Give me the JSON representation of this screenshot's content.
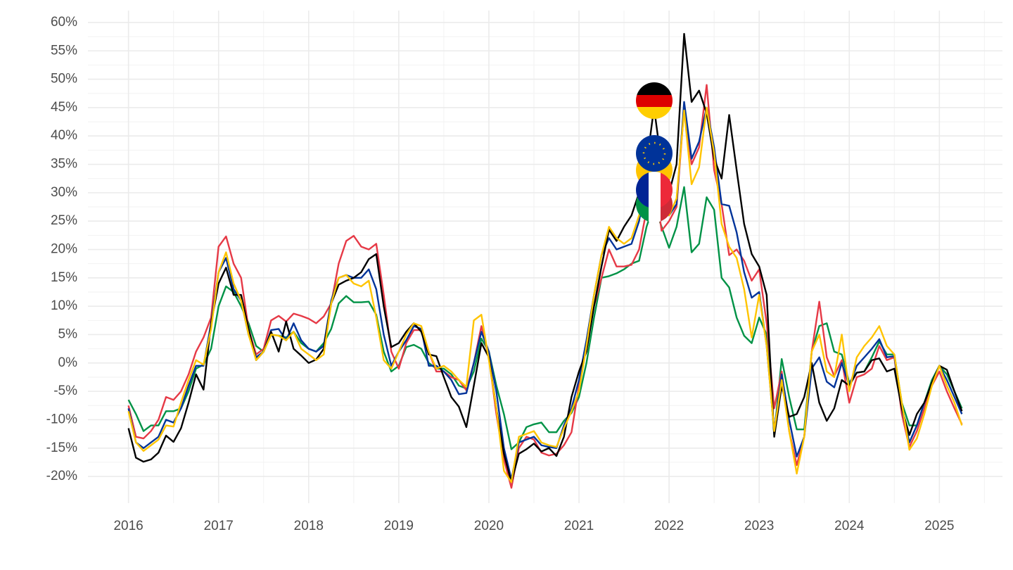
{
  "chart_data": {
    "type": "line",
    "x": [
      2016,
      2016.083,
      2016.167,
      2016.25,
      2016.333,
      2016.417,
      2016.5,
      2016.583,
      2016.667,
      2016.75,
      2016.833,
      2016.917,
      2017,
      2017.083,
      2017.167,
      2017.25,
      2017.333,
      2017.417,
      2017.5,
      2017.583,
      2017.667,
      2017.75,
      2017.833,
      2017.917,
      2018,
      2018.083,
      2018.167,
      2018.25,
      2018.333,
      2018.417,
      2018.5,
      2018.583,
      2018.667,
      2018.75,
      2018.833,
      2018.917,
      2019,
      2019.083,
      2019.167,
      2019.25,
      2019.333,
      2019.417,
      2019.5,
      2019.583,
      2019.667,
      2019.75,
      2019.833,
      2019.917,
      2020,
      2020.083,
      2020.167,
      2020.25,
      2020.333,
      2020.417,
      2020.5,
      2020.583,
      2020.667,
      2020.75,
      2020.833,
      2020.917,
      2021,
      2021.083,
      2021.167,
      2021.25,
      2021.333,
      2021.417,
      2021.5,
      2021.583,
      2021.667,
      2021.75,
      2021.833,
      2021.917,
      2022,
      2022.083,
      2022.167,
      2022.25,
      2022.333,
      2022.417,
      2022.5,
      2022.583,
      2022.667,
      2022.75,
      2022.833,
      2022.917,
      2023,
      2023.083,
      2023.167,
      2023.25,
      2023.333,
      2023.417,
      2023.5,
      2023.583,
      2023.667,
      2023.75,
      2023.833,
      2023.917,
      2024,
      2024.083,
      2024.167,
      2024.25,
      2024.333,
      2024.417,
      2024.5,
      2024.583,
      2024.667,
      2024.75,
      2024.833,
      2024.917,
      2025,
      2025.083,
      2025.167,
      2025.25
    ],
    "series": [
      {
        "color": "#009246",
        "values": [
          -6.5,
          -9,
          -12,
          -11,
          -11,
          -8.5,
          -8.5,
          -8,
          -5,
          -1,
          -0.3,
          2.5,
          10,
          13.5,
          12.5,
          10,
          7,
          3,
          2,
          5,
          4.8,
          4.5,
          5.5,
          3.5,
          2.5,
          2,
          3.5,
          6,
          10.5,
          11.8,
          10.7,
          10.7,
          10.8,
          8.5,
          2,
          -1.5,
          -0.5,
          2.8,
          3.2,
          2.5,
          0,
          -1,
          -1,
          -2,
          -4,
          -4.5,
          -1.5,
          4.3,
          2,
          -4,
          -9,
          -15.2,
          -14,
          -11.3,
          -10.8,
          -10.5,
          -12.2,
          -12.2,
          -10.2,
          -8.8,
          -6,
          0,
          8,
          15,
          15.3,
          15.8,
          16.5,
          17.5,
          18,
          24,
          28,
          24,
          20.3,
          24,
          31,
          19.5,
          21,
          29.2,
          27,
          15,
          13.3,
          8,
          4.8,
          3.5,
          8,
          5,
          -12.7,
          0.7,
          -6,
          -11.7,
          -11.7,
          2,
          6.5,
          7,
          2,
          1.5,
          -3.5,
          -1.7,
          -1.5,
          1,
          3.8,
          1.5,
          1.5,
          -7,
          -11,
          -11,
          -7,
          -3,
          -0.5,
          -2,
          -5,
          -8
        ]
      },
      {
        "color": "#e63946",
        "values": [
          -7.5,
          -13,
          -13.3,
          -12,
          -10,
          -6,
          -6.5,
          -5,
          -2,
          2,
          4.5,
          8,
          20.5,
          22.3,
          17.5,
          15,
          6,
          1.5,
          2.5,
          7.5,
          8.3,
          7.3,
          8.7,
          8.3,
          7.8,
          7,
          8.2,
          10.5,
          17.5,
          21.5,
          22.4,
          20.5,
          20,
          21,
          12,
          2,
          -1,
          3.5,
          5.8,
          5.8,
          2,
          -1.5,
          -1.5,
          -2.5,
          -3,
          -4.8,
          0,
          6.5,
          1,
          -9,
          -17,
          -22,
          -15,
          -13,
          -13.5,
          -15.8,
          -16.3,
          -16,
          -14.5,
          -12.2,
          -4,
          3,
          10,
          15,
          20,
          17,
          17,
          17.3,
          20,
          27,
          33,
          23.3,
          25,
          27.5,
          45,
          35,
          38,
          49,
          34,
          28,
          19,
          20,
          18,
          14.5,
          16.5,
          7,
          -8,
          -1.5,
          -12,
          -18,
          -13,
          2,
          10.8,
          1,
          -2.3,
          0.5,
          -7,
          -2.5,
          -2,
          -1,
          3,
          0.5,
          1,
          -9,
          -14.8,
          -12,
          -8,
          -4,
          -1.5,
          -5,
          -8,
          -10.8
        ]
      },
      {
        "color": "#003399",
        "values": [
          -8,
          -14,
          -15,
          -14,
          -13,
          -10,
          -10.5,
          -8,
          -4,
          -0.5,
          -0.5,
          7,
          16,
          18.5,
          13,
          11,
          5,
          1,
          2,
          5.8,
          6,
          4,
          7,
          4,
          2.5,
          2,
          3,
          11,
          15,
          15.5,
          15,
          15,
          16.5,
          13,
          5,
          -0.5,
          2,
          4,
          6.5,
          6,
          -0.5,
          -0.5,
          -1.5,
          -3,
          -5.5,
          -5.3,
          0,
          5.5,
          2,
          -5,
          -15,
          -20.5,
          -14,
          -13.5,
          -13,
          -14.5,
          -14.8,
          -15,
          -11,
          -8,
          -3,
          4,
          12,
          19,
          22,
          20,
          20.5,
          21,
          25,
          32,
          36.5,
          35,
          26,
          28,
          46,
          36,
          39,
          45,
          38,
          28,
          27.7,
          23,
          16,
          11.5,
          12.5,
          3,
          -12,
          -2,
          -10,
          -16.5,
          -13,
          -1,
          1,
          -3.3,
          -4.3,
          0,
          -4,
          -0.5,
          1,
          2.5,
          4.2,
          1,
          1.2,
          -8,
          -14,
          -11,
          -7,
          -3.5,
          -0.5,
          -3,
          -6,
          -9
        ]
      },
      {
        "color": "#000000",
        "values": [
          -11.5,
          -16.7,
          -17.4,
          -17,
          -15.8,
          -12.8,
          -13.9,
          -11.5,
          -7,
          -2,
          -4.7,
          7,
          14,
          16.8,
          12,
          12,
          6,
          0.5,
          2,
          5.5,
          2,
          7.3,
          2.5,
          1.3,
          0,
          0.6,
          2.5,
          10.5,
          13.8,
          14.5,
          15,
          16,
          18.3,
          19.2,
          10,
          2.8,
          3.5,
          5.5,
          7,
          5.5,
          1.5,
          1.2,
          -2.5,
          -6,
          -7.7,
          -11.3,
          -4,
          3.5,
          1,
          -8,
          -16,
          -21,
          -16,
          -15.2,
          -14.2,
          -15.6,
          -15,
          -16.4,
          -13,
          -6,
          -1.5,
          2,
          10,
          17,
          23.5,
          21.5,
          24,
          26,
          30,
          35,
          45,
          35,
          30,
          35,
          58,
          46,
          48,
          44,
          36,
          32.5,
          43.7,
          34,
          24.5,
          19.2,
          17,
          12,
          -13,
          -4,
          -9.5,
          -9,
          -6,
          0,
          -7,
          -10.2,
          -8,
          -3,
          -4,
          -1.7,
          -1.5,
          0.5,
          0.8,
          -1.5,
          -1,
          -8,
          -12.7,
          -9,
          -7,
          -3.5,
          -0.5,
          -1.2,
          -5,
          -8.5
        ]
      },
      {
        "color": "#ffc400",
        "values": [
          -8.5,
          -14,
          -15.5,
          -14.5,
          -13.5,
          -11,
          -11.2,
          -7,
          -3,
          0.5,
          -0.3,
          6,
          16,
          19.5,
          14,
          11,
          5,
          0.5,
          2,
          5,
          4.8,
          4,
          5.5,
          2.5,
          1.5,
          0.5,
          1.5,
          10.5,
          15,
          15.5,
          14,
          13.5,
          14.5,
          8,
          0.5,
          -1,
          2,
          5,
          7,
          6.5,
          2,
          -1,
          -0.5,
          -1.5,
          -3,
          -4.2,
          7.5,
          8.5,
          0.5,
          -8,
          -19,
          -21,
          -13,
          -12.5,
          -12,
          -14,
          -14.5,
          -14.8,
          -11.5,
          -8.5,
          -5,
          3,
          12,
          19,
          24,
          22,
          21,
          22,
          26,
          30,
          35,
          33,
          26,
          29,
          44.5,
          31.5,
          34.5,
          45,
          37,
          24.5,
          20.5,
          18.5,
          13,
          4.5,
          12,
          3,
          -12,
          -3,
          -12,
          -19.5,
          -13,
          2,
          5,
          -1.5,
          -2.5,
          5,
          -5,
          1,
          3,
          4.5,
          6.5,
          3,
          1.5,
          -7,
          -15.3,
          -13.3,
          -9,
          -4,
          -0.5,
          -4,
          -7,
          -11
        ]
      }
    ],
    "xlim": [
      2015.55,
      2025.7
    ],
    "ylim": [
      -24.7,
      62.1
    ],
    "xticks": [
      2016,
      2017,
      2018,
      2019,
      2020,
      2021,
      2022,
      2023,
      2024,
      2025
    ],
    "yticks": [
      {
        "value": 60,
        "label": "60%"
      },
      {
        "value": 55,
        "label": "55%"
      },
      {
        "value": 50,
        "label": "50%"
      },
      {
        "value": 45,
        "label": "45%"
      },
      {
        "value": 40,
        "label": "40%"
      },
      {
        "value": 35,
        "label": "35%"
      },
      {
        "value": 30,
        "label": "30%"
      },
      {
        "value": 25,
        "label": "25%"
      },
      {
        "value": 20,
        "label": "20%"
      },
      {
        "value": 15,
        "label": "15%"
      },
      {
        "value": 10,
        "label": "10%"
      },
      {
        "value": 5,
        "label": "5%"
      },
      {
        "value": 0,
        "label": "0%"
      },
      {
        "value": -5,
        "label": "-5%"
      },
      {
        "value": -10,
        "label": "-10%"
      },
      {
        "value": -15,
        "label": "-15%"
      },
      {
        "value": -20,
        "label": "-20%"
      }
    ],
    "grid": true
  }
}
